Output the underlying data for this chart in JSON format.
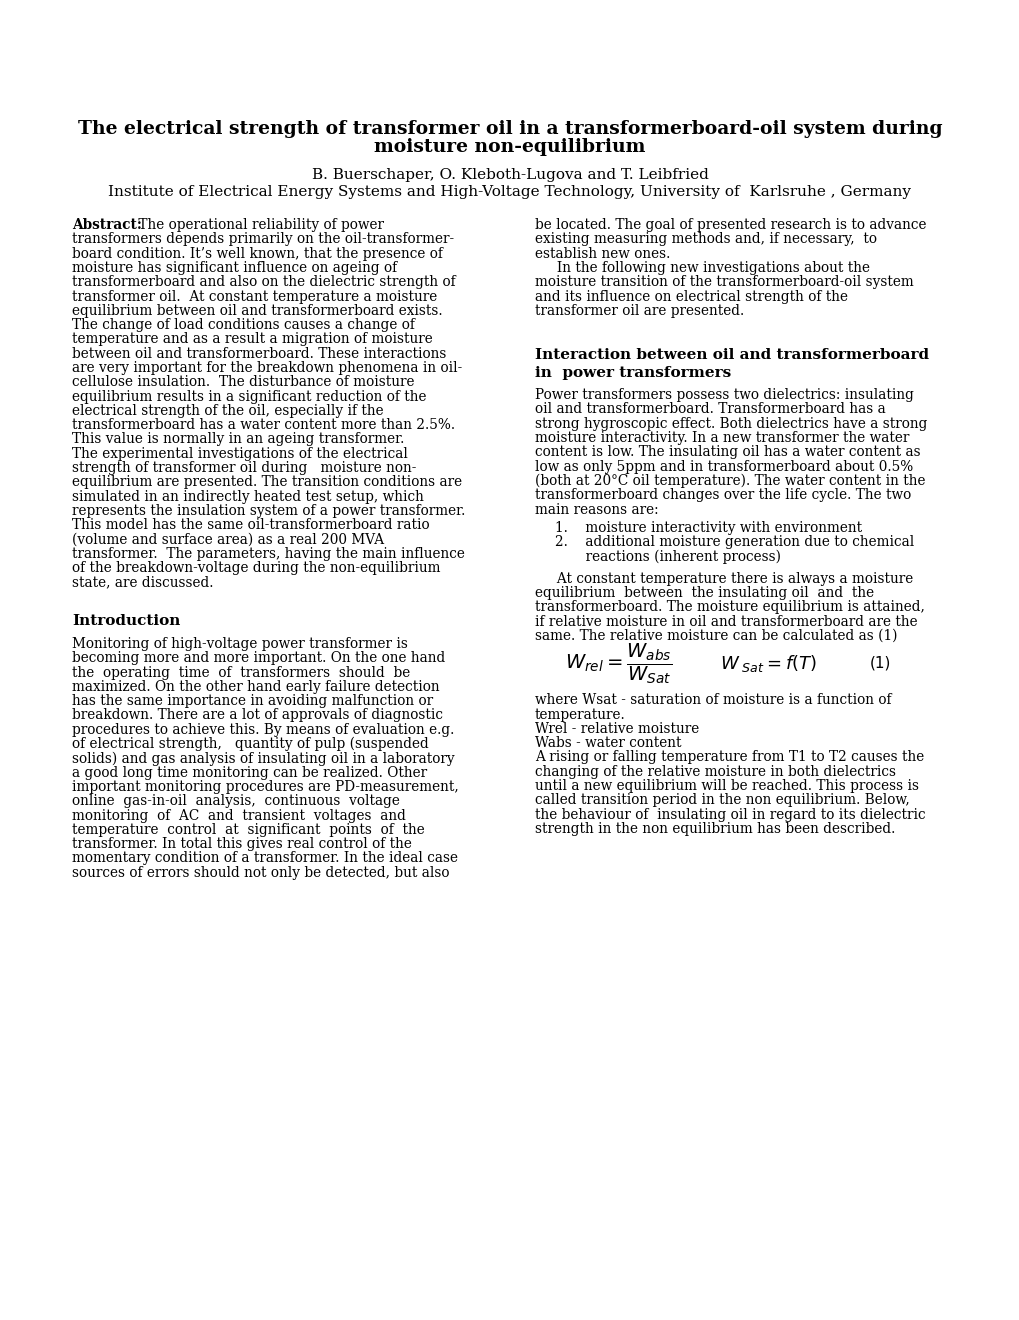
{
  "title_line1": "The electrical strength of transformer oil in a transformerboard-oil system during",
  "title_line2": "moisture non-equilibrium",
  "authors": "B. Buerschaper, O. Kleboth-Lugova and T. Leibfried",
  "affiliation": "Institute of Electrical Energy Systems and High-Voltage Technology, University of  Karlsruhe , Germany",
  "col1_abstract_lines": [
    "Abstract:  The operational reliability of power",
    "transformers depends primarily on the oil-transformer-",
    "board condition. It’s well known, that the presence of",
    "moisture has significant influence on ageing of",
    "transformerboard and also on the dielectric strength of",
    "transformer oil.  At constant temperature a moisture",
    "equilibrium between oil and transformerboard exists.",
    "The change of load conditions causes a change of",
    "temperature and as a result a migration of moisture",
    "between oil and transformerboard. These interactions",
    "are very important for the breakdown phenomena in oil-",
    "cellulose insulation.  The disturbance of moisture",
    "equilibrium results in a significant reduction of the",
    "electrical strength of the oil, especially if the",
    "transformerboard has a water content more than 2.5%.",
    "This value is normally in an ageing transformer.",
    "The experimental investigations of the electrical",
    "strength of transformer oil during   moisture non-",
    "equilibrium are presented. The transition conditions are",
    "simulated in an indirectly heated test setup, which",
    "represents the insulation system of a power transformer.",
    "This model has the same oil-transformerboard ratio",
    "(volume and surface area) as a real 200 MVA",
    "transformer.  The parameters, having the main influence",
    "of the breakdown-voltage during the non-equilibrium",
    "state, are discussed."
  ],
  "col1_intro_title": "Introduction",
  "col1_intro_lines": [
    "Monitoring of high-voltage power transformer is",
    "becoming more and more important. On the one hand",
    "the  operating  time  of  transformers  should  be",
    "maximized. On the other hand early failure detection",
    "has the same importance in avoiding malfunction or",
    "breakdown. There are a lot of approvals of diagnostic",
    "procedures to achieve this. By means of evaluation e.g.",
    "of electrical strength,   quantity of pulp (suspended",
    "solids) and gas analysis of insulating oil in a laboratory",
    "a good long time monitoring can be realized. Other",
    "important monitoring procedures are PD-measurement,",
    "online  gas-in-oil  analysis,  continuous  voltage",
    "monitoring  of  AC  and  transient  voltages  and",
    "temperature  control  at  significant  points  of  the",
    "transformer. In total this gives real control of the",
    "momentary condition of a transformer. In the ideal case",
    "sources of errors should not only be detected, but also"
  ],
  "col2_abstract_lines": [
    "be located. The goal of presented research is to advance",
    "existing measuring methods and, if necessary,  to",
    "establish new ones.",
    "     In the following new investigations about the",
    "moisture transition of the transformerboard-oil system",
    "and its influence on electrical strength of the",
    "transformer oil are presented."
  ],
  "col2_section1_title_lines": [
    "Interaction between oil and transformerboard",
    "in  power transformers"
  ],
  "col2_section1_lines": [
    "Power transformers possess two dielectrics: insulating",
    "oil and transformerboard. Transformerboard has a",
    "strong hygroscopic effect. Both dielectrics have a strong",
    "moisture interactivity. In a new transformer the water",
    "content is low. The insulating oil has a water content as",
    "low as only 5ppm and in transformerboard about 0.5%",
    "(both at 20°C oil temperature). The water content in the",
    "transformerboard changes over the life cycle. The two",
    "main reasons are:"
  ],
  "col2_list_lines": [
    "1.    moisture interactivity with environment",
    "2.    additional moisture generation due to chemical",
    "       reactions (inherent process)"
  ],
  "col2_section1b_lines": [
    "     At constant temperature there is always a moisture",
    "equilibrium  between  the insulating oil  and  the",
    "transformerboard. The moisture equilibrium is attained,",
    "if relative moisture in oil and transformerboard are the",
    "same. The relative moisture can be calculated as (1)"
  ],
  "col2_formula_note_lines": [
    "where Wsat - saturation of moisture is a function of",
    "temperature.",
    "Wrel - relative moisture",
    "Wabs - water content",
    "A rising or falling temperature from T1 to T2 causes the",
    "changing of the relative moisture in both dielectrics",
    "until a new equilibrium will be reached. This process is",
    "called transition period in the non equilibrium. Below,",
    "the behaviour of  insulating oil in regard to its dielectric",
    "strength in the non equilibrium has been described."
  ],
  "bg": "#ffffff",
  "fg": "#000000"
}
